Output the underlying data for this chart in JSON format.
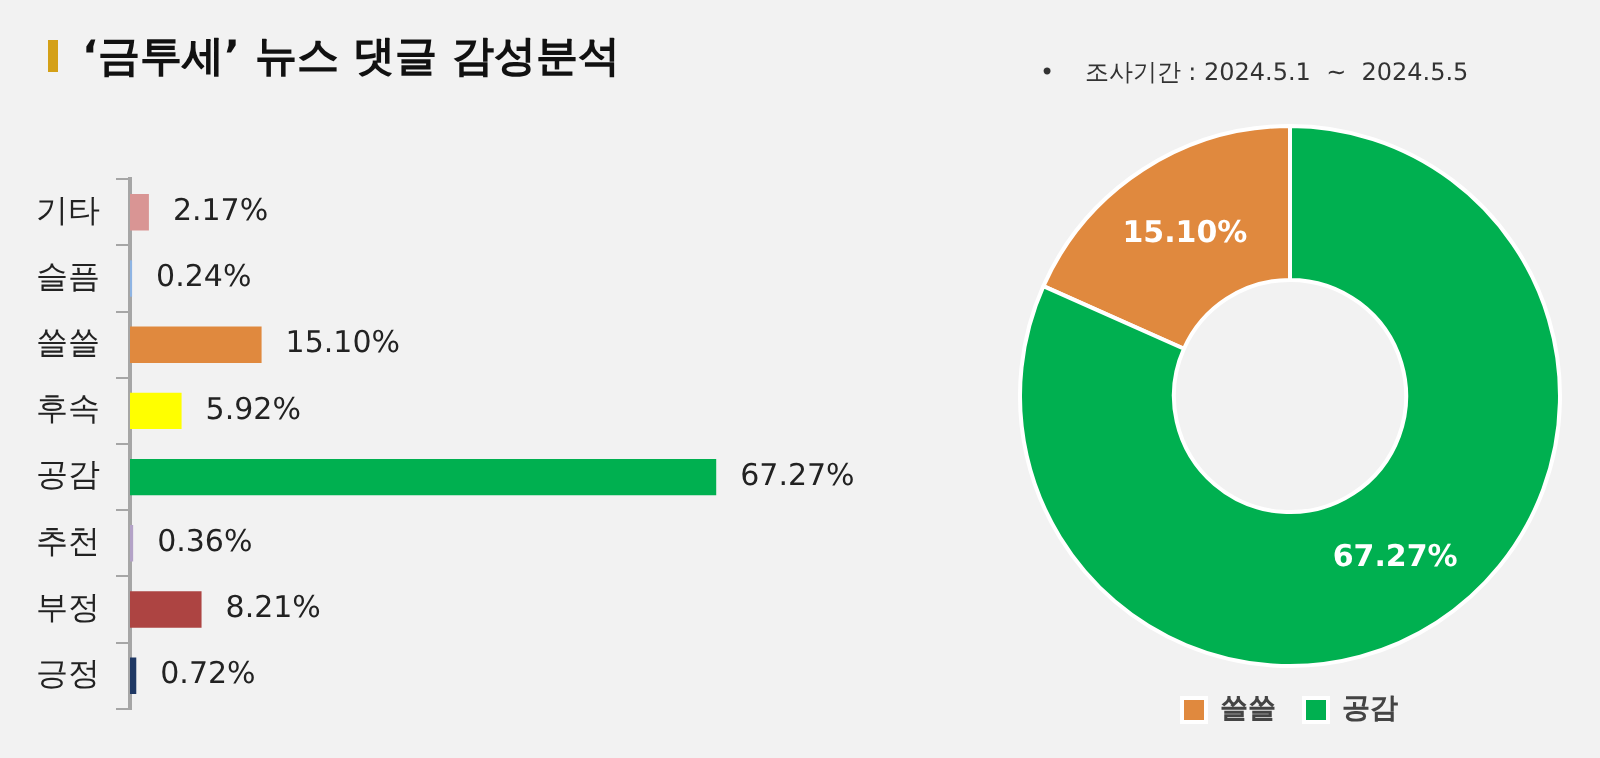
{
  "chart_data": [
    {
      "type": "bar",
      "orientation": "horizontal",
      "title": "‘금투세’ 뉴스 댓글 감성분석",
      "categories": [
        "기타",
        "슬픔",
        "쓸쓸",
        "후속",
        "공감",
        "추천",
        "부정",
        "긍정"
      ],
      "values": [
        2.17,
        0.24,
        15.1,
        5.92,
        67.27,
        0.36,
        8.21,
        0.72
      ],
      "colors": [
        "#d99594",
        "#8eb4e3",
        "#e0893e",
        "#ffff00",
        "#00b050",
        "#b3a2c7",
        "#ad4442",
        "#1f3864"
      ],
      "value_labels": [
        "2.17%",
        "0.24%",
        "15.10%",
        "5.92%",
        "67.27%",
        "0.36%",
        "8.21%",
        "0.72%"
      ]
    },
    {
      "type": "donut",
      "annotations": [
        "•    조사기간 : 2024.5.1  ~  2024.5.5"
      ],
      "categories": [
        "쓸쓸",
        "공감"
      ],
      "values": [
        15.1,
        67.27
      ],
      "colors": [
        "#e0893e",
        "#00b050"
      ],
      "value_labels": [
        "15.10%",
        "67.27%"
      ],
      "legend": "bottom"
    }
  ]
}
